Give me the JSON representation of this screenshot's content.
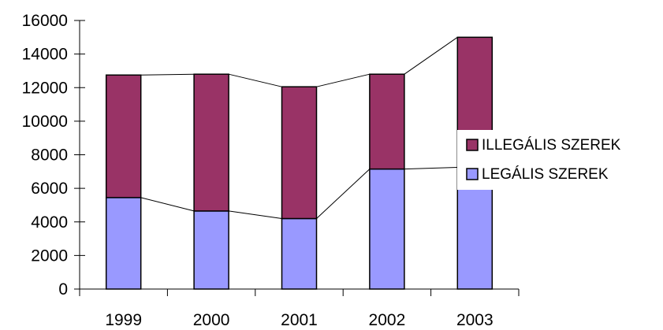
{
  "chart_data": {
    "type": "bar",
    "stacked": true,
    "series_lines": true,
    "categories": [
      "1999",
      "2000",
      "2001",
      "2002",
      "2003"
    ],
    "series": [
      {
        "name": "LEGÁLIS SZEREK",
        "values": [
          5450,
          4650,
          4200,
          7150,
          7250
        ],
        "color": "#9999ff"
      },
      {
        "name": "ILLEGÁLIS SZEREK",
        "values": [
          7300,
          8150,
          7850,
          5650,
          7750
        ],
        "color": "#993366"
      }
    ],
    "ylim": [
      0,
      16000
    ],
    "yticks": [
      "0",
      "2000",
      "4000",
      "6000",
      "8000",
      "10000",
      "12000",
      "14000",
      "16000"
    ],
    "grid": false,
    "legend_position": "right",
    "legend_order": [
      "ILLEGÁLIS SZEREK",
      "LEGÁLIS SZEREK"
    ]
  }
}
